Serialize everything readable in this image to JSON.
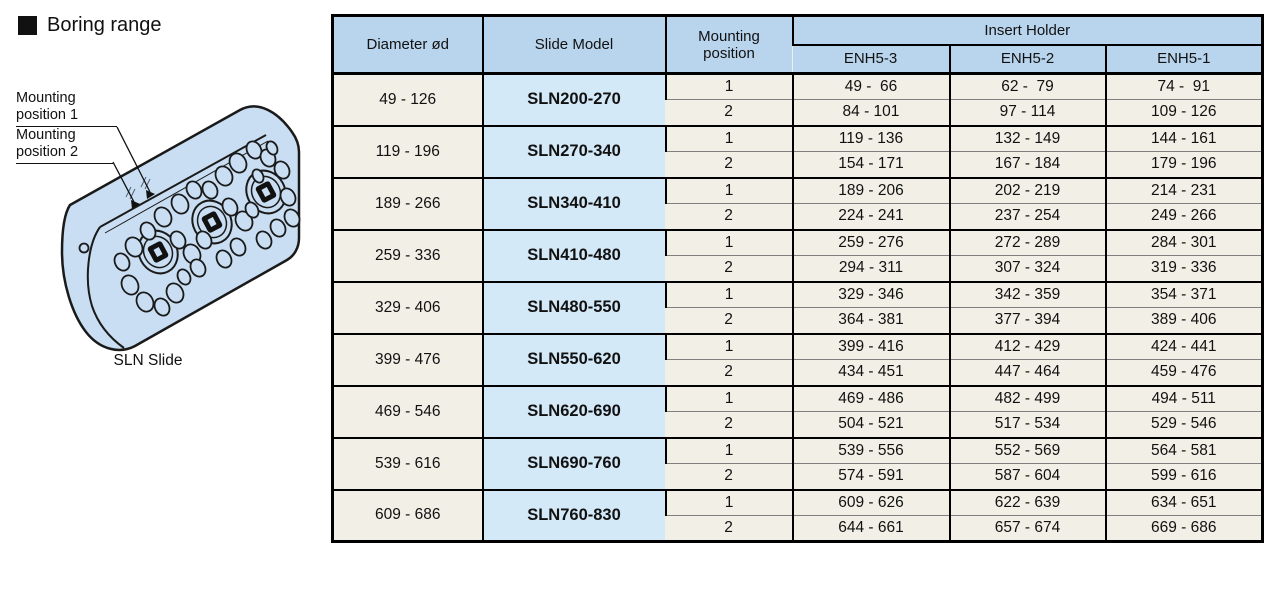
{
  "left": {
    "title": "Boring range",
    "labels": {
      "mount1": "Mounting\nposition 1",
      "mount2": "Mounting\nposition 2"
    },
    "caption": "SLN Slide"
  },
  "table": {
    "headers": {
      "diameter": "Diameter ød",
      "model": "Slide Model",
      "mounting": "Mounting\nposition",
      "insert_holder": "Insert Holder",
      "sub": [
        "ENH5-3",
        "ENH5-2",
        "ENH5-1"
      ]
    },
    "groups": [
      {
        "diameter": "49 - 126",
        "model": "SLN200-270",
        "rows": [
          {
            "position": "1",
            "values": [
              "49 -  66",
              "62 -  79",
              "74 -  91"
            ]
          },
          {
            "position": "2",
            "values": [
              "84 - 101",
              "97 - 114",
              "109 - 126"
            ]
          }
        ]
      },
      {
        "diameter": "119 - 196",
        "model": "SLN270-340",
        "rows": [
          {
            "position": "1",
            "values": [
              "119 - 136",
              "132 - 149",
              "144 - 161"
            ]
          },
          {
            "position": "2",
            "values": [
              "154 - 171",
              "167 - 184",
              "179 - 196"
            ]
          }
        ]
      },
      {
        "diameter": "189 - 266",
        "model": "SLN340-410",
        "rows": [
          {
            "position": "1",
            "values": [
              "189 - 206",
              "202 - 219",
              "214 - 231"
            ]
          },
          {
            "position": "2",
            "values": [
              "224 - 241",
              "237 - 254",
              "249 - 266"
            ]
          }
        ]
      },
      {
        "diameter": "259 - 336",
        "model": "SLN410-480",
        "rows": [
          {
            "position": "1",
            "values": [
              "259 - 276",
              "272 - 289",
              "284 - 301"
            ]
          },
          {
            "position": "2",
            "values": [
              "294 - 311",
              "307 - 324",
              "319 - 336"
            ]
          }
        ]
      },
      {
        "diameter": "329 - 406",
        "model": "SLN480-550",
        "rows": [
          {
            "position": "1",
            "values": [
              "329 - 346",
              "342 - 359",
              "354 - 371"
            ]
          },
          {
            "position": "2",
            "values": [
              "364 - 381",
              "377 - 394",
              "389 - 406"
            ]
          }
        ]
      },
      {
        "diameter": "399 - 476",
        "model": "SLN550-620",
        "rows": [
          {
            "position": "1",
            "values": [
              "399 - 416",
              "412 - 429",
              "424 - 441"
            ]
          },
          {
            "position": "2",
            "values": [
              "434 - 451",
              "447 - 464",
              "459 - 476"
            ]
          }
        ]
      },
      {
        "diameter": "469 - 546",
        "model": "SLN620-690",
        "rows": [
          {
            "position": "1",
            "values": [
              "469 - 486",
              "482 - 499",
              "494 - 511"
            ]
          },
          {
            "position": "2",
            "values": [
              "504 - 521",
              "517 - 534",
              "529 - 546"
            ]
          }
        ]
      },
      {
        "diameter": "539 - 616",
        "model": "SLN690-760",
        "rows": [
          {
            "position": "1",
            "values": [
              "539 - 556",
              "552 - 569",
              "564 - 581"
            ]
          },
          {
            "position": "2",
            "values": [
              "574 - 591",
              "587 - 604",
              "599 - 616"
            ]
          }
        ]
      },
      {
        "diameter": "609 - 686",
        "model": "SLN760-830",
        "rows": [
          {
            "position": "1",
            "values": [
              "609 - 626",
              "622 - 639",
              "634 - 651"
            ]
          },
          {
            "position": "2",
            "values": [
              "644 - 661",
              "657 - 674",
              "669 - 686"
            ]
          }
        ]
      }
    ]
  },
  "colors": {
    "header_blue": "#b9d5ee",
    "model_blue": "#d4e9f8",
    "cell_cream": "#f2efe6",
    "block_blue": "#c9def2"
  }
}
